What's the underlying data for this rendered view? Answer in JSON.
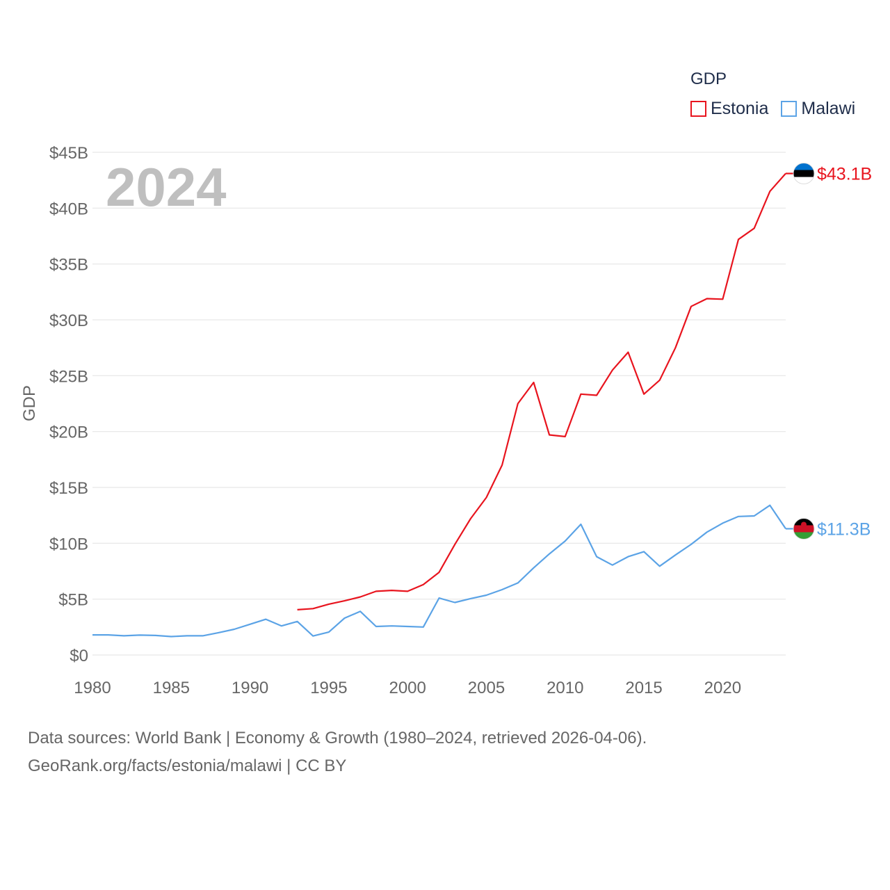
{
  "legend": {
    "title": "GDP",
    "items": [
      {
        "label": "Estonia",
        "color": "#e8141e"
      },
      {
        "label": "Malawi",
        "color": "#5ba3e6"
      }
    ]
  },
  "year_watermark": "2024",
  "footer": {
    "line1": "Data sources: World Bank | Economy & Growth (1980–2024, retrieved 2026-04-06).",
    "line2": "GeoRank.org/facts/estonia/malawi | CC BY"
  },
  "chart_data": {
    "type": "line",
    "title": "GDP",
    "xlabel": "",
    "ylabel": "GDP",
    "xlim": [
      1980,
      2024
    ],
    "ylim": [
      0,
      45
    ],
    "y_unit": "billion USD",
    "x_ticks": [
      1980,
      1985,
      1990,
      1995,
      2000,
      2005,
      2010,
      2015,
      2020
    ],
    "y_ticks": [
      0,
      5,
      10,
      15,
      20,
      25,
      30,
      35,
      40,
      45
    ],
    "y_tick_labels": [
      "$0",
      "$5B",
      "$10B",
      "$15B",
      "$20B",
      "$25B",
      "$30B",
      "$35B",
      "$40B",
      "$45B"
    ],
    "grid": true,
    "series": [
      {
        "name": "Estonia",
        "color": "#e8141e",
        "end_label": "$43.1B",
        "x": [
          1993,
          1994,
          1995,
          1996,
          1997,
          1998,
          1999,
          2000,
          2001,
          2002,
          2003,
          2004,
          2005,
          2006,
          2007,
          2008,
          2009,
          2010,
          2011,
          2012,
          2013,
          2014,
          2015,
          2016,
          2017,
          2018,
          2019,
          2020,
          2021,
          2022,
          2023,
          2024
        ],
        "y": [
          4.05,
          4.15,
          4.55,
          4.85,
          5.2,
          5.7,
          5.78,
          5.7,
          6.3,
          7.4,
          9.9,
          12.2,
          14.1,
          17.0,
          22.5,
          24.4,
          19.7,
          19.55,
          23.35,
          23.25,
          25.5,
          27.1,
          23.35,
          24.6,
          27.5,
          31.2,
          31.9,
          31.85,
          37.2,
          38.2,
          41.5,
          43.1
        ]
      },
      {
        "name": "Malawi",
        "color": "#5ba3e6",
        "end_label": "$11.3B",
        "x": [
          1980,
          1981,
          1982,
          1983,
          1984,
          1985,
          1986,
          1987,
          1988,
          1989,
          1990,
          1991,
          1992,
          1993,
          1994,
          1995,
          1996,
          1997,
          1998,
          1999,
          2000,
          2001,
          2002,
          2003,
          2004,
          2005,
          2006,
          2007,
          2008,
          2009,
          2010,
          2011,
          2012,
          2013,
          2014,
          2015,
          2016,
          2017,
          2018,
          2019,
          2020,
          2021,
          2022,
          2023,
          2024
        ],
        "y": [
          1.8,
          1.8,
          1.72,
          1.78,
          1.75,
          1.65,
          1.72,
          1.72,
          2.0,
          2.3,
          2.75,
          3.2,
          2.6,
          3.0,
          1.7,
          2.05,
          3.3,
          3.9,
          2.55,
          2.6,
          2.55,
          2.5,
          5.1,
          4.7,
          5.05,
          5.35,
          5.85,
          6.45,
          7.8,
          9.05,
          10.2,
          11.7,
          8.8,
          8.05,
          8.8,
          9.25,
          7.95,
          8.95,
          9.9,
          11.0,
          11.8,
          12.4,
          12.45,
          13.4,
          11.3
        ]
      }
    ]
  }
}
